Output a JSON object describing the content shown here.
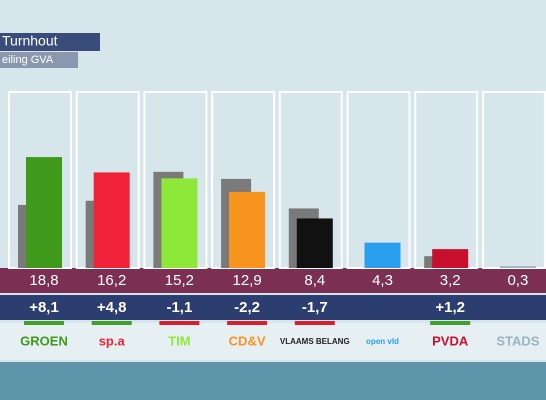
{
  "chart_data": {
    "type": "bar",
    "title": "Turnhout",
    "subtitle": "eiling GVA",
    "categories": [
      "GROEN",
      "sp.a",
      "TIM",
      "CD&V",
      "VLAAMS BELANG",
      "open vld",
      "PVDA",
      "STADS"
    ],
    "values": [
      18.8,
      16.2,
      15.2,
      12.9,
      8.4,
      4.3,
      3.2,
      0.3
    ],
    "value_labels": [
      "18,8",
      "16,2",
      "15,2",
      "12,9",
      "8,4",
      "4,3",
      "3,2",
      "0,3"
    ],
    "colors": [
      "#3f9a1c",
      "#f0233a",
      "#8ee83a",
      "#f7941d",
      "#111111",
      "#2a9ff0",
      "#c8102e",
      "#9ab4c4"
    ],
    "previous_values": [
      10.7,
      11.4,
      16.3,
      15.1,
      10.1,
      null,
      2.0,
      null
    ],
    "previous_color": "#7a7a7a",
    "changes": [
      8.1,
      4.8,
      -1.1,
      -2.2,
      -1.7,
      null,
      1.2,
      null
    ],
    "change_labels": [
      "+8,1",
      "+4,8",
      "-1,1",
      "-2,2",
      "-1,7",
      null,
      "+1,2",
      null
    ]
  }
}
